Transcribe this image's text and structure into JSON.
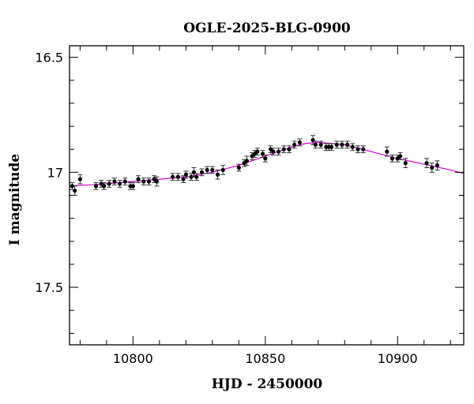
{
  "chart_data": {
    "type": "scatter",
    "title": "OGLE-2025-BLG-0900",
    "xlabel": "HJD - 2450000",
    "ylabel": "I magnitude",
    "xlim": [
      10776,
      10925
    ],
    "ylim": [
      17.75,
      16.45
    ],
    "y_inverted": true,
    "grid": false,
    "x_ticks": [
      10800,
      10850,
      10900
    ],
    "x_tick_labels": [
      "10800",
      "10850",
      "10900"
    ],
    "y_ticks": [
      16.5,
      17,
      17.5
    ],
    "y_tick_labels": [
      "16.5",
      "17",
      "17.5"
    ],
    "colors": {
      "data": "#000000",
      "model": "#cc00cc"
    },
    "series": [
      {
        "type": "scatter_errorbar",
        "x": [
          10777,
          10778,
          10780,
          10786,
          10788,
          10789,
          10791,
          10793,
          10795,
          10797,
          10799,
          10800,
          10802,
          10804,
          10806,
          10808,
          10809,
          10815,
          10817,
          10819,
          10820,
          10822,
          10823,
          10824,
          10826,
          10828,
          10830,
          10832,
          10834,
          10840,
          10842,
          10843,
          10845,
          10846,
          10847,
          10849,
          10850,
          10852,
          10853,
          10855,
          10857,
          10859,
          10861,
          10863,
          10868,
          10869,
          10871,
          10873,
          10874,
          10875,
          10877,
          10879,
          10881,
          10883,
          10885,
          10887,
          10896,
          10898,
          10900,
          10901,
          10903,
          10911,
          10913,
          10915
        ],
        "y": [
          17.06,
          17.08,
          17.03,
          17.06,
          17.05,
          17.06,
          17.05,
          17.04,
          17.05,
          17.04,
          17.06,
          17.06,
          17.03,
          17.04,
          17.04,
          17.03,
          17.04,
          17.02,
          17.02,
          17.03,
          17.01,
          17.02,
          17.0,
          17.02,
          17.0,
          16.99,
          16.99,
          17.01,
          16.99,
          16.98,
          16.96,
          16.95,
          16.93,
          16.92,
          16.91,
          16.92,
          16.94,
          16.9,
          16.91,
          16.91,
          16.9,
          16.9,
          16.88,
          16.87,
          16.86,
          16.88,
          16.88,
          16.89,
          16.89,
          16.89,
          16.88,
          16.88,
          16.88,
          16.89,
          16.9,
          16.9,
          16.91,
          16.94,
          16.94,
          16.93,
          16.96,
          16.96,
          16.98,
          16.97
        ],
        "err": [
          0.015,
          0.02,
          0.02,
          0.015,
          0.015,
          0.015,
          0.015,
          0.015,
          0.015,
          0.015,
          0.015,
          0.015,
          0.015,
          0.015,
          0.015,
          0.015,
          0.02,
          0.015,
          0.015,
          0.015,
          0.015,
          0.015,
          0.02,
          0.015,
          0.015,
          0.015,
          0.015,
          0.02,
          0.02,
          0.015,
          0.015,
          0.02,
          0.015,
          0.015,
          0.015,
          0.015,
          0.015,
          0.015,
          0.015,
          0.015,
          0.015,
          0.015,
          0.015,
          0.015,
          0.02,
          0.015,
          0.015,
          0.015,
          0.015,
          0.015,
          0.015,
          0.015,
          0.015,
          0.015,
          0.015,
          0.015,
          0.02,
          0.015,
          0.015,
          0.015,
          0.02,
          0.02,
          0.02,
          0.02
        ]
      },
      {
        "type": "model_line",
        "x": [
          10776,
          10790,
          10800,
          10810,
          10820,
          10830,
          10840,
          10850,
          10860,
          10865,
          10870,
          10875,
          10880,
          10890,
          10900,
          10910,
          10920,
          10925
        ],
        "y": [
          17.06,
          17.05,
          17.04,
          17.03,
          17.02,
          17.0,
          16.97,
          16.93,
          16.89,
          16.875,
          16.87,
          16.875,
          16.88,
          16.91,
          16.94,
          16.965,
          16.99,
          17.005
        ]
      }
    ]
  }
}
